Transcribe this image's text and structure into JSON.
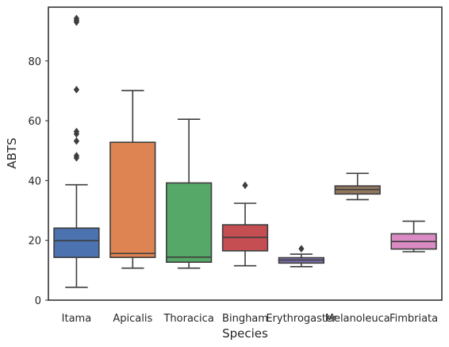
{
  "chart_data": {
    "type": "box",
    "title": "",
    "xlabel": "Species",
    "ylabel": "ABTS",
    "ylim": [
      0,
      98
    ],
    "yticks": [
      0,
      20,
      40,
      60,
      80
    ],
    "grid": false,
    "legend": "none",
    "categories": [
      "Itama",
      "Apicalis",
      "Thoracica",
      "Bingham",
      "Erythrogaster",
      "Melanoleuca",
      "Fimbriata"
    ],
    "boxes": [
      {
        "category": "Itama",
        "whisker_low": 4.3,
        "q1": 14.3,
        "median": 19.9,
        "q3": 24.1,
        "whisker_high": 38.6,
        "outliers": [
          47.6,
          48.3,
          53.2,
          55.6,
          56.4,
          70.4,
          93.0,
          93.6,
          94.2
        ],
        "color": "#4C72B0"
      },
      {
        "category": "Apicalis",
        "whisker_low": 10.7,
        "q1": 14.3,
        "median": 15.6,
        "q3": 52.8,
        "whisker_high": 70.1,
        "outliers": [],
        "color": "#DD8452"
      },
      {
        "category": "Thoracica",
        "whisker_low": 10.7,
        "q1": 12.7,
        "median": 14.4,
        "q3": 39.2,
        "whisker_high": 60.5,
        "outliers": [],
        "color": "#55A868"
      },
      {
        "category": "Bingham",
        "whisker_low": 11.5,
        "q1": 16.5,
        "median": 21.0,
        "q3": 25.2,
        "whisker_high": 32.4,
        "outliers": [
          38.4
        ],
        "color": "#C44E52"
      },
      {
        "category": "Erythrogaster",
        "whisker_low": 11.2,
        "q1": 12.4,
        "median": 13.4,
        "q3": 14.2,
        "whisker_high": 15.4,
        "outliers": [
          17.2
        ],
        "color": "#8172B3"
      },
      {
        "category": "Melanoleuca",
        "whisker_low": 33.6,
        "q1": 35.5,
        "median": 37.0,
        "q3": 38.2,
        "whisker_high": 42.4,
        "outliers": [],
        "color": "#937860"
      },
      {
        "category": "Fimbriata",
        "whisker_low": 16.2,
        "q1": 17.1,
        "median": 19.6,
        "q3": 22.2,
        "whisker_high": 26.4,
        "outliers": [],
        "color": "#DA8BC3"
      }
    ],
    "line_color": "#3d3d3d"
  }
}
